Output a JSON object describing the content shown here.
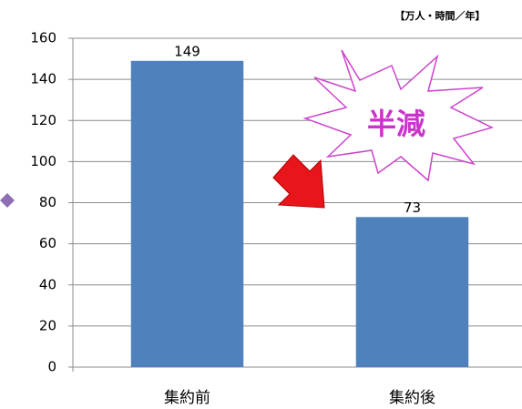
{
  "chart_data": {
    "type": "bar",
    "unit_label": "【万人・時間／年】",
    "annotation": "半減",
    "categories": [
      "集約前",
      "集約後"
    ],
    "values": [
      149,
      73
    ],
    "color": "#4f81bd",
    "ylim": [
      0,
      160
    ],
    "yticks": [
      0,
      20,
      40,
      60,
      80,
      100,
      120,
      140,
      160
    ],
    "grid": true
  }
}
